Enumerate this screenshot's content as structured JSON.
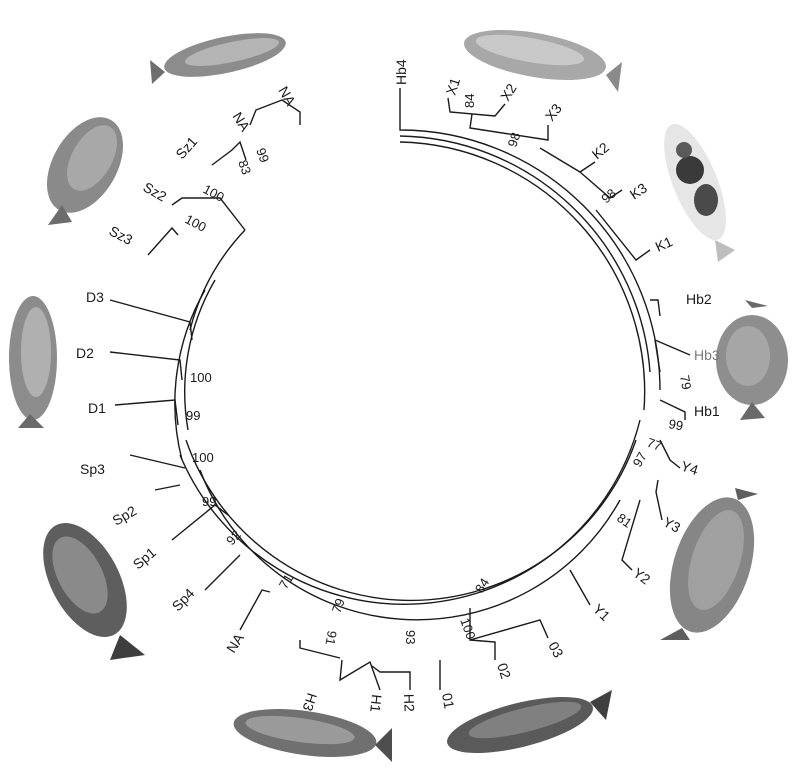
{
  "tree": {
    "center": "Hb4",
    "leaves": [
      {
        "id": "x1",
        "label": "X1"
      },
      {
        "id": "x2",
        "label": "X2"
      },
      {
        "id": "x3",
        "label": "X3"
      },
      {
        "id": "k2",
        "label": "K2"
      },
      {
        "id": "k3",
        "label": "K3"
      },
      {
        "id": "k1",
        "label": "K1"
      },
      {
        "id": "hb2",
        "label": "Hb2"
      },
      {
        "id": "hb3",
        "label": "Hb3"
      },
      {
        "id": "hb1",
        "label": "Hb1"
      },
      {
        "id": "y4",
        "label": "Y4"
      },
      {
        "id": "y3",
        "label": "Y3"
      },
      {
        "id": "y2",
        "label": "Y2"
      },
      {
        "id": "y1",
        "label": "Y1"
      },
      {
        "id": "o3",
        "label": "03"
      },
      {
        "id": "o2",
        "label": "02"
      },
      {
        "id": "o1",
        "label": "01"
      },
      {
        "id": "h2",
        "label": "H2"
      },
      {
        "id": "h1",
        "label": "H1"
      },
      {
        "id": "h3",
        "label": "H3"
      },
      {
        "id": "na3",
        "label": "NA"
      },
      {
        "id": "sp4",
        "label": "Sp4"
      },
      {
        "id": "sp1",
        "label": "Sp1"
      },
      {
        "id": "sp2",
        "label": "Sp2"
      },
      {
        "id": "sp3",
        "label": "Sp3"
      },
      {
        "id": "d1",
        "label": "D1"
      },
      {
        "id": "d2",
        "label": "D2"
      },
      {
        "id": "d3",
        "label": "D3"
      },
      {
        "id": "sz3",
        "label": "Sz3"
      },
      {
        "id": "sz2",
        "label": "Sz2"
      },
      {
        "id": "sz1",
        "label": "Sz1"
      },
      {
        "id": "na2",
        "label": "NA"
      },
      {
        "id": "na1",
        "label": "NA"
      }
    ],
    "bootstrap": [
      {
        "id": "b84a",
        "label": "84"
      },
      {
        "id": "b98a",
        "label": "98"
      },
      {
        "id": "b98b",
        "label": "98"
      },
      {
        "id": "b79a",
        "label": "79"
      },
      {
        "id": "b99a",
        "label": "99"
      },
      {
        "id": "b77",
        "label": "77"
      },
      {
        "id": "b97",
        "label": "97"
      },
      {
        "id": "b81",
        "label": "81"
      },
      {
        "id": "b84b",
        "label": "84"
      },
      {
        "id": "b100a",
        "label": "100"
      },
      {
        "id": "b93",
        "label": "93"
      },
      {
        "id": "b91",
        "label": "91"
      },
      {
        "id": "b79b",
        "label": "79"
      },
      {
        "id": "b71",
        "label": "71"
      },
      {
        "id": "b92",
        "label": "92"
      },
      {
        "id": "b99b",
        "label": "99"
      },
      {
        "id": "b100b",
        "label": "100"
      },
      {
        "id": "b99c",
        "label": "99"
      },
      {
        "id": "b100c",
        "label": "100"
      },
      {
        "id": "b100d",
        "label": "100"
      },
      {
        "id": "b100e",
        "label": "100"
      },
      {
        "id": "b83",
        "label": "83"
      },
      {
        "id": "b99d",
        "label": "99"
      }
    ]
  },
  "photos": [
    {
      "id": "fish-top-left",
      "icon": "fish-icon"
    },
    {
      "id": "fish-top-right",
      "icon": "fish-icon"
    },
    {
      "id": "fish-koi",
      "icon": "fish-icon"
    },
    {
      "id": "fish-upper-left",
      "icon": "fish-icon"
    },
    {
      "id": "fish-right",
      "icon": "fish-icon"
    },
    {
      "id": "fish-left",
      "icon": "fish-icon"
    },
    {
      "id": "fish-lower-right",
      "icon": "fish-icon"
    },
    {
      "id": "fish-lower-left",
      "icon": "fish-icon"
    },
    {
      "id": "fish-bottom-left",
      "icon": "fish-icon"
    },
    {
      "id": "fish-bottom-right",
      "icon": "fish-icon"
    }
  ]
}
